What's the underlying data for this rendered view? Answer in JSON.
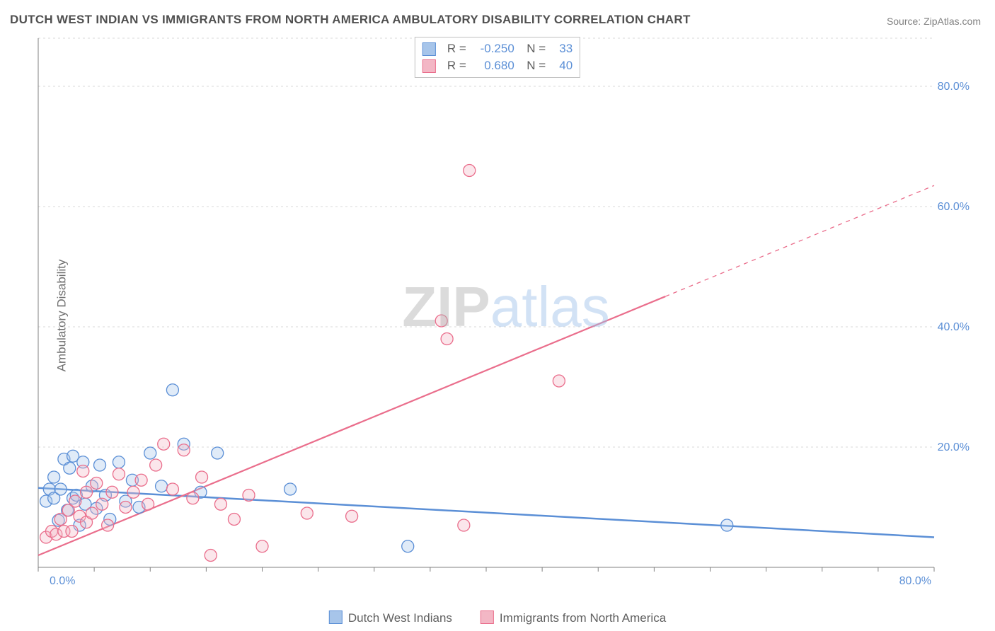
{
  "title": "DUTCH WEST INDIAN VS IMMIGRANTS FROM NORTH AMERICA AMBULATORY DISABILITY CORRELATION CHART",
  "source": "Source: ZipAtlas.com",
  "ylabel": "Ambulatory Disability",
  "watermark": {
    "part1": "ZIP",
    "part2": "atlas"
  },
  "chart": {
    "type": "scatter",
    "background_color": "#ffffff",
    "grid_color": "#d9d9d9",
    "axis_color": "#808080",
    "tick_color": "#5b8fd6",
    "xlim": [
      0,
      80
    ],
    "ylim": [
      0,
      88
    ],
    "xticks": [
      {
        "v": 0,
        "l": "0.0%"
      },
      {
        "v": 80,
        "l": "80.0%"
      }
    ],
    "yticks": [
      {
        "v": 20,
        "l": "20.0%"
      },
      {
        "v": 40,
        "l": "40.0%"
      },
      {
        "v": 60,
        "l": "60.0%"
      },
      {
        "v": 80,
        "l": "80.0%"
      }
    ],
    "grid_y": [
      20,
      40,
      60,
      80,
      88
    ],
    "marker_radius": 8.5,
    "marker_stroke_width": 1.3,
    "marker_fill_opacity": 0.35,
    "series": [
      {
        "name": "Dutch West Indians",
        "R": "-0.250",
        "N": "33",
        "color_stroke": "#5b8fd6",
        "color_fill": "#a7c5ea",
        "points": [
          [
            0.7,
            11
          ],
          [
            1.0,
            13
          ],
          [
            1.4,
            15
          ],
          [
            1.4,
            11.5
          ],
          [
            1.8,
            7.8
          ],
          [
            2.0,
            13.0
          ],
          [
            2.3,
            18
          ],
          [
            2.6,
            9.5
          ],
          [
            2.8,
            16.5
          ],
          [
            3.1,
            11.5
          ],
          [
            3.1,
            18.5
          ],
          [
            3.4,
            12.0
          ],
          [
            3.7,
            7.0
          ],
          [
            4.0,
            17.5
          ],
          [
            4.2,
            10.5
          ],
          [
            4.8,
            13.5
          ],
          [
            5.2,
            9.8
          ],
          [
            5.5,
            17.0
          ],
          [
            6.0,
            12.0
          ],
          [
            6.4,
            8.0
          ],
          [
            7.2,
            17.5
          ],
          [
            7.8,
            11.0
          ],
          [
            8.4,
            14.5
          ],
          [
            9.0,
            10.0
          ],
          [
            10.0,
            19.0
          ],
          [
            11.0,
            13.5
          ],
          [
            12.0,
            29.5
          ],
          [
            13.0,
            20.5
          ],
          [
            14.5,
            12.5
          ],
          [
            16.0,
            19.0
          ],
          [
            22.5,
            13.0
          ],
          [
            33.0,
            3.5
          ],
          [
            61.5,
            7.0
          ]
        ],
        "trend": {
          "x0": 0,
          "y0": 13.2,
          "x1": 80,
          "y1": 5.0,
          "width": 2.5,
          "dash": ""
        }
      },
      {
        "name": "Immigrants from North America",
        "R": "0.680",
        "N": "40",
        "color_stroke": "#ea6e8c",
        "color_fill": "#f3b7c5",
        "points": [
          [
            0.7,
            5.0
          ],
          [
            1.2,
            6.0
          ],
          [
            1.6,
            5.5
          ],
          [
            2.0,
            8.0
          ],
          [
            2.3,
            6.0
          ],
          [
            2.7,
            9.5
          ],
          [
            3.0,
            6.0
          ],
          [
            3.3,
            11.0
          ],
          [
            3.7,
            8.5
          ],
          [
            4.0,
            16.0
          ],
          [
            4.3,
            7.5
          ],
          [
            4.3,
            12.5
          ],
          [
            4.8,
            9.0
          ],
          [
            5.2,
            14.0
          ],
          [
            5.7,
            10.5
          ],
          [
            6.2,
            7.0
          ],
          [
            6.6,
            12.5
          ],
          [
            7.2,
            15.5
          ],
          [
            7.8,
            10.0
          ],
          [
            8.5,
            12.5
          ],
          [
            9.2,
            14.5
          ],
          [
            9.8,
            10.5
          ],
          [
            10.5,
            17.0
          ],
          [
            11.2,
            20.5
          ],
          [
            12.0,
            13.0
          ],
          [
            13.0,
            19.5
          ],
          [
            13.8,
            11.5
          ],
          [
            14.6,
            15.0
          ],
          [
            15.4,
            2.0
          ],
          [
            16.3,
            10.5
          ],
          [
            17.5,
            8.0
          ],
          [
            18.8,
            12.0
          ],
          [
            20.0,
            3.5
          ],
          [
            24.0,
            9.0
          ],
          [
            28.0,
            8.5
          ],
          [
            36.0,
            41.0
          ],
          [
            36.5,
            38.0
          ],
          [
            38.0,
            7.0
          ],
          [
            38.5,
            66.0
          ],
          [
            46.5,
            31.0
          ]
        ],
        "trend": {
          "x0": 0,
          "y0": 2.0,
          "x1": 80,
          "y1": 63.5,
          "width": 2.2,
          "dash": "",
          "dash_from_x": 56,
          "dash_pattern": "6 6"
        }
      }
    ]
  },
  "legend_axis": {
    "items": [
      {
        "label": "Dutch West Indians",
        "fill": "#a7c5ea",
        "stroke": "#5b8fd6"
      },
      {
        "label": "Immigrants from North America",
        "fill": "#f3b7c5",
        "stroke": "#ea6e8c"
      }
    ]
  }
}
